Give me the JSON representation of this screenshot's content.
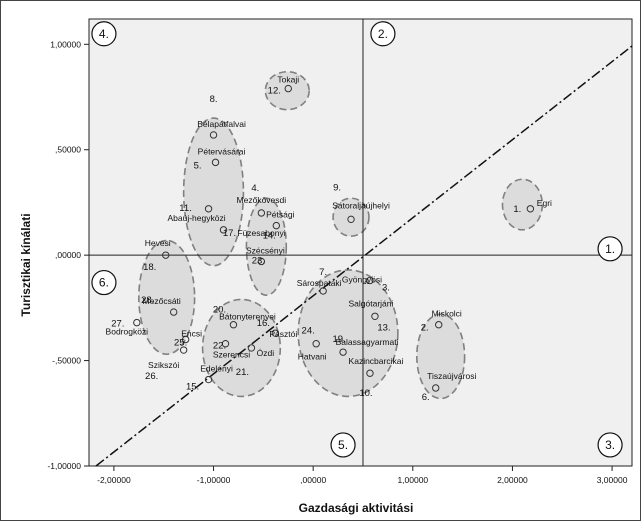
{
  "chart_data": {
    "type": "scatter",
    "xlabel": "Gazdasági aktivitási",
    "ylabel": "Turisztikai kínálati",
    "xlim": [
      -2.25,
      3.2
    ],
    "ylim": [
      -1.0,
      1.12
    ],
    "x_ticks": [
      {
        "v": -2.0,
        "label": "-2,00000"
      },
      {
        "v": -1.0,
        "label": "-1,00000"
      },
      {
        "v": 0.0,
        "label": ",00000"
      },
      {
        "v": 1.0,
        "label": "1,00000"
      },
      {
        "v": 2.0,
        "label": "2,00000"
      },
      {
        "v": 3.0,
        "label": "3,00000"
      }
    ],
    "y_ticks": [
      {
        "v": 1.0,
        "label": "1,00000"
      },
      {
        "v": 0.5,
        "label": ",50000"
      },
      {
        "v": 0.0,
        "label": ",00000"
      },
      {
        "v": -0.5,
        "label": "-,50000"
      },
      {
        "v": -1.0,
        "label": "-1,00000"
      }
    ],
    "reference_lines": {
      "vertical_x": 0.5,
      "horizontal_y": 0.0,
      "diagonal": "dash-dot"
    },
    "quadrant_labels": [
      "4.",
      "2.",
      "1.",
      "6.",
      "5.",
      "3."
    ],
    "points": [
      {
        "name": "Tokaji",
        "num": "12.",
        "x": -0.25,
        "y": 0.79
      },
      {
        "name": "Bélapátfalvai",
        "num": "8.",
        "x": -1.0,
        "y": 0.57
      },
      {
        "name": "Pétervásárai",
        "num": "5.",
        "x": -0.98,
        "y": 0.44
      },
      {
        "name": "Abaúj-hegyközi",
        "num": "11.",
        "x": -1.05,
        "y": 0.22
      },
      {
        "name": "Mezőkövesdi",
        "num": "4.",
        "x": -0.52,
        "y": 0.2
      },
      {
        "name": "Pétsági",
        "num": "14.",
        "x": -0.37,
        "y": 0.14
      },
      {
        "name": "Füzesabonyi",
        "num": "17.",
        "x": -0.9,
        "y": 0.12
      },
      {
        "name": "Sátoraljaújhelyi",
        "num": "9.",
        "x": 0.38,
        "y": 0.17
      },
      {
        "name": "Egri",
        "num": "1.",
        "x": 2.18,
        "y": 0.22
      },
      {
        "name": "Hevesi",
        "num": "18.",
        "x": -1.48,
        "y": 0.0
      },
      {
        "name": "Szécsényi",
        "num": "23.",
        "x": -0.52,
        "y": -0.03
      },
      {
        "name": "Gyöngyösi",
        "num": "3.",
        "x": 0.57,
        "y": -0.12
      },
      {
        "name": "Sárospataki",
        "num": "7.",
        "x": 0.1,
        "y": -0.17
      },
      {
        "name": "Mezőcsáti",
        "num": "28.",
        "x": -1.4,
        "y": -0.27
      },
      {
        "name": "Bodrogközi",
        "num": "27.",
        "x": -1.77,
        "y": -0.32
      },
      {
        "name": "Bátonyterenyei",
        "num": "20.",
        "x": -0.8,
        "y": -0.33
      },
      {
        "name": "Salgótarjáni",
        "num": "13.",
        "x": 0.62,
        "y": -0.29
      },
      {
        "name": "Miskolci",
        "num": "2.",
        "x": 1.26,
        "y": -0.33
      },
      {
        "name": "Pásztói",
        "num": "16.",
        "x": -0.38,
        "y": -0.37
      },
      {
        "name": "Encsi",
        "num": "25.",
        "x": -1.28,
        "y": -0.4
      },
      {
        "name": "Szikszói",
        "num": "26.",
        "x": -1.3,
        "y": -0.45
      },
      {
        "name": "Szerencsi",
        "num": "22.",
        "x": -0.88,
        "y": -0.42
      },
      {
        "name": "Hatvani",
        "num": "24.",
        "x": 0.03,
        "y": -0.42
      },
      {
        "name": "Balassagyarmati",
        "num": "19.",
        "x": 0.3,
        "y": -0.46
      },
      {
        "name": "Ózdi",
        "num": "21.",
        "x": -0.62,
        "y": -0.44
      },
      {
        "name": "Edelényi",
        "num": "15.",
        "x": -1.05,
        "y": -0.59
      },
      {
        "name": "Kazincbarcikai",
        "num": "10.",
        "x": 0.57,
        "y": -0.56
      },
      {
        "name": "Tiszaújvárosi",
        "num": "6.",
        "x": 1.23,
        "y": -0.63
      }
    ],
    "groups": [
      {
        "cx": -0.26,
        "cy": 0.78,
        "rx": 0.22,
        "ry": 0.09
      },
      {
        "cx": -1.0,
        "cy": 0.3,
        "rx": 0.3,
        "ry": 0.35
      },
      {
        "cx": -0.47,
        "cy": 0.04,
        "rx": 0.2,
        "ry": 0.23
      },
      {
        "cx": 0.38,
        "cy": 0.18,
        "rx": 0.18,
        "ry": 0.09
      },
      {
        "cx": 2.1,
        "cy": 0.24,
        "rx": 0.2,
        "ry": 0.12
      },
      {
        "cx": -1.47,
        "cy": -0.2,
        "rx": 0.28,
        "ry": 0.27
      },
      {
        "cx": -0.72,
        "cy": -0.44,
        "rx": 0.39,
        "ry": 0.23
      },
      {
        "cx": 0.35,
        "cy": -0.37,
        "rx": 0.5,
        "ry": 0.3
      },
      {
        "cx": 1.28,
        "cy": -0.48,
        "rx": 0.24,
        "ry": 0.2
      }
    ]
  }
}
